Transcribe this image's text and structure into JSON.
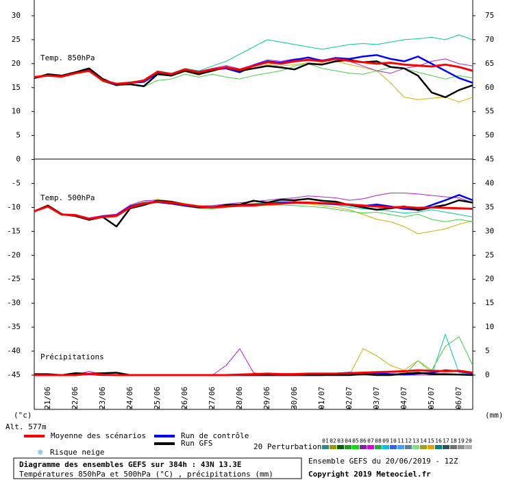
{
  "chart_data": {
    "type": "line",
    "title": "Diagramme des ensembles GEFS sur 384h : 43N 13.3E",
    "subtitle": "Températures 850hPa et 500hPa (°C) , précipitations (mm)",
    "run_info": "Ensemble GEFS du 20/06/2019 - 12Z",
    "copyright": "Copyright 2019 Meteociel.fr",
    "panel_labels": [
      "Temp. 850hPa",
      "Temp. 500hPa",
      "Précipitations"
    ],
    "unit_left": "(°c)",
    "unit_right": "(mm)",
    "altitude": "Alt. 577m",
    "snow_label": "Risque neige",
    "x": [
      0,
      12,
      24,
      36,
      48,
      60,
      72,
      84,
      96,
      108,
      120,
      132,
      144,
      156,
      168,
      180,
      192,
      204,
      216,
      228,
      240,
      252,
      264,
      276,
      288,
      300,
      312,
      324,
      336,
      348,
      360,
      372,
      384
    ],
    "xlim": [
      0,
      384
    ],
    "xticks": [
      {
        "value": 12,
        "label": "21/06"
      },
      {
        "value": 36,
        "label": "22/06"
      },
      {
        "value": 60,
        "label": "23/06"
      },
      {
        "value": 84,
        "label": "24/06"
      },
      {
        "value": 108,
        "label": "25/06"
      },
      {
        "value": 132,
        "label": "26/06"
      },
      {
        "value": 156,
        "label": "27/06"
      },
      {
        "value": 180,
        "label": "28/06"
      },
      {
        "value": 204,
        "label": "29/06"
      },
      {
        "value": 228,
        "label": "30/06"
      },
      {
        "value": 252,
        "label": "01/07"
      },
      {
        "value": 276,
        "label": "02/07"
      },
      {
        "value": 300,
        "label": "03/07"
      },
      {
        "value": 324,
        "label": "04/07"
      },
      {
        "value": 348,
        "label": "05/07"
      },
      {
        "value": 372,
        "label": "06/07"
      }
    ],
    "ylim": [
      -52.16,
      33.29
    ],
    "yticks": [
      30,
      25,
      20,
      15,
      10,
      5,
      0,
      -5,
      -10,
      -15,
      -20,
      -25,
      -30,
      -35,
      -40,
      -45
    ],
    "y2lim": [
      -7.16,
      78.29
    ],
    "y2ticks": [
      75,
      70,
      65,
      60,
      55,
      50,
      45,
      40,
      35,
      30,
      25,
      20,
      15,
      10,
      5,
      0
    ],
    "series": [
      {
        "name": "Moyenne des scénarios",
        "color": "#ff0000",
        "t850": [
          17.2,
          17.5,
          17.3,
          18,
          18.5,
          16.5,
          15.8,
          16,
          16.5,
          18.3,
          17.8,
          18.8,
          18.2,
          18.8,
          19.2,
          18.7,
          19.5,
          20.3,
          20,
          20.5,
          20.8,
          20.5,
          21,
          20.6,
          20.3,
          20,
          20.2,
          19.8,
          19.6,
          19.4,
          19.8,
          19.3,
          18.5
        ],
        "t500": [
          -10.8,
          -9.8,
          -11.5,
          -11.6,
          -12.4,
          -12,
          -11.8,
          -10,
          -9.2,
          -8.8,
          -9,
          -9.4,
          -9.8,
          -10,
          -9.8,
          -9.6,
          -9.6,
          -9.3,
          -9.2,
          -9,
          -9,
          -9.1,
          -9.2,
          -9.4,
          -9.6,
          -9.8,
          -10,
          -9.9,
          -10.1,
          -10,
          -10.1,
          -10.2,
          -10.3
        ],
        "precip": [
          0,
          0,
          0,
          0,
          0.3,
          0.1,
          0,
          0,
          0,
          0,
          0,
          0,
          0,
          0,
          0,
          0.1,
          0.2,
          0.3,
          0.2,
          0.2,
          0.3,
          0.3,
          0.3,
          0.4,
          0.5,
          0.6,
          0.7,
          0.8,
          1,
          0.9,
          0.8,
          0.9,
          0.5
        ]
      },
      {
        "name": "Run de contrôle",
        "color": "#0000ff",
        "t850": [
          17,
          17.6,
          17.4,
          18,
          18.8,
          16.5,
          15.5,
          16,
          16.2,
          18,
          17.5,
          18.6,
          18,
          18.8,
          19,
          18.2,
          19.6,
          20.5,
          20.2,
          20.8,
          21.3,
          20.6,
          21.2,
          21,
          21.5,
          21.8,
          21,
          20.5,
          21.5,
          20,
          18.5,
          17,
          16
        ],
        "t500": [
          -10.8,
          -9.7,
          -11.5,
          -11.7,
          -12.5,
          -11.9,
          -11.7,
          -9.8,
          -9.1,
          -8.9,
          -9.2,
          -9.6,
          -10,
          -9.9,
          -9.7,
          -9.5,
          -9.4,
          -9.3,
          -9,
          -8.9,
          -9,
          -9.2,
          -9.3,
          -9.5,
          -9.7,
          -9.4,
          -9.8,
          -10.3,
          -10.5,
          -9.5,
          -8.5,
          -7.4,
          -8.5
        ],
        "precip": [
          0,
          0,
          0,
          0,
          0.2,
          0,
          0,
          0,
          0,
          0,
          0,
          0,
          0,
          0,
          0,
          0,
          0,
          0,
          0,
          0,
          0,
          0,
          0.3,
          0.5,
          0.3,
          0.4,
          0.2,
          0.1,
          0.3,
          0.5,
          1,
          0.8,
          0.3
        ]
      },
      {
        "name": "Run GFS",
        "color": "#000000",
        "t850": [
          17,
          17.8,
          17.5,
          18.2,
          19,
          16.8,
          15.6,
          15.7,
          15.3,
          17.8,
          17.5,
          18.5,
          17.8,
          18.5,
          19.3,
          18.5,
          19,
          19.5,
          19.2,
          18.8,
          20,
          19.8,
          20.5,
          20.8,
          20.3,
          20.5,
          19.3,
          19,
          17.5,
          14,
          13,
          14.5,
          15.5
        ],
        "t500": [
          -10.8,
          -9.6,
          -11.4,
          -11.8,
          -12.6,
          -12,
          -14,
          -10.2,
          -9.5,
          -8.6,
          -8.8,
          -9.4,
          -10,
          -10,
          -9.5,
          -9.4,
          -8.6,
          -9,
          -8.4,
          -8.5,
          -8.2,
          -8.6,
          -8.8,
          -9.5,
          -10,
          -10.5,
          -10.2,
          -9.8,
          -10.6,
          -10,
          -9.5,
          -8.5,
          -9
        ],
        "precip": [
          0.2,
          0.2,
          0,
          0.4,
          0.3,
          0.4,
          0.5,
          0,
          0,
          0,
          0,
          0,
          0,
          0,
          0,
          0,
          0,
          0,
          0,
          0,
          0,
          0,
          0,
          0,
          0.2,
          0,
          0,
          0.3,
          0.5,
          0.2,
          0.2,
          0.1,
          0
        ]
      }
    ],
    "perturbations": [
      {
        "color": "#c8b400",
        "t850": [
          17,
          17.5,
          17.3,
          18,
          18.6,
          16.4,
          15.6,
          16,
          16.4,
          18,
          17.5,
          18.3,
          17.6,
          18.5,
          19,
          18.2,
          19,
          19.8,
          19.5,
          19.8,
          20.2,
          20,
          20.5,
          19.8,
          19.2,
          18.5,
          16,
          13,
          12.5,
          12.8,
          13,
          12,
          13
        ],
        "t500": [
          -10.8,
          -9.8,
          -11.5,
          -11.6,
          -12.3,
          -11.8,
          -11.5,
          -9.6,
          -8.8,
          -8.3,
          -8.7,
          -9.2,
          -9.6,
          -9.8,
          -9.5,
          -9.3,
          -9.2,
          -9,
          -8.9,
          -9.1,
          -9.3,
          -9.6,
          -10,
          -10.5,
          -11.5,
          -12.5,
          -13,
          -14,
          -15.5,
          -15,
          -14.5,
          -13.5,
          -12.8
        ],
        "precip": [
          0,
          0,
          0,
          0,
          0,
          0,
          0,
          0,
          0,
          0,
          0,
          0,
          0,
          0,
          0,
          0,
          0,
          0,
          0,
          0,
          0,
          0,
          0,
          0,
          5.5,
          4,
          2,
          1,
          3,
          0.5,
          0,
          0,
          0
        ]
      },
      {
        "color": "#00c8a0",
        "t850": [
          17,
          17.7,
          17.5,
          18.1,
          18.8,
          16.6,
          15.9,
          16.2,
          16.5,
          18.5,
          18,
          19,
          18.5,
          19.5,
          20.5,
          22,
          23.5,
          25,
          24.5,
          24,
          23.5,
          23,
          23.5,
          24,
          24.2,
          24,
          24.5,
          25,
          25.2,
          25.5,
          25,
          26,
          25
        ],
        "t500": [
          -10.8,
          -9.8,
          -11.5,
          -11.6,
          -12.4,
          -12,
          -11.6,
          -9.9,
          -9,
          -8.6,
          -9,
          -9.5,
          -9.9,
          -10,
          -9.6,
          -9.4,
          -9.3,
          -9,
          -8.8,
          -8.9,
          -9.1,
          -9.3,
          -9.5,
          -10,
          -10.3,
          -10.5,
          -10.8,
          -11.2,
          -11,
          -10.5,
          -11,
          -11.5,
          -12
        ],
        "precip": [
          0,
          0,
          0,
          0,
          0,
          0,
          0,
          0,
          0,
          0,
          0,
          0,
          0,
          0,
          0,
          0,
          0,
          0,
          0,
          0,
          0,
          0,
          0,
          0,
          0,
          0,
          0,
          0,
          0,
          0,
          8.5,
          0.5,
          0
        ]
      },
      {
        "color": "#40d040",
        "t850": [
          17,
          17.4,
          17.2,
          17.9,
          18.5,
          16.2,
          15.5,
          15.6,
          15.2,
          16.5,
          16.8,
          17.8,
          17.2,
          17.8,
          17.2,
          16.8,
          17.5,
          18,
          18.5,
          19.5,
          20,
          19,
          18.5,
          18,
          17.8,
          18.5,
          19.2,
          19,
          18.2,
          17.5,
          16.8,
          17.5,
          17
        ],
        "t500": [
          -10.8,
          -9.7,
          -11.4,
          -11.7,
          -12.6,
          -12.1,
          -11.9,
          -10.2,
          -9.4,
          -9,
          -9.3,
          -9.8,
          -10.2,
          -10.3,
          -10,
          -9.8,
          -9.7,
          -9.6,
          -9.5,
          -9.6,
          -9.8,
          -10,
          -10.4,
          -10.8,
          -11.2,
          -11,
          -11.5,
          -12,
          -11.4,
          -12.5,
          -13,
          -12.5,
          -13
        ],
        "precip": [
          0,
          0,
          0,
          0,
          0,
          0,
          0,
          0,
          0,
          0,
          0,
          0,
          0,
          0,
          0,
          0,
          0,
          0,
          0,
          0,
          0,
          0,
          0,
          0,
          0,
          0,
          0,
          0,
          3,
          1,
          6,
          8,
          2
        ]
      },
      {
        "color": "#b020d0",
        "t850": [
          17,
          17.6,
          17.3,
          18,
          18.7,
          16.7,
          15.8,
          16.1,
          16.3,
          18.4,
          17.9,
          18.9,
          18.4,
          19,
          19.6,
          18.9,
          19.8,
          20.8,
          20.5,
          21,
          21.2,
          20.8,
          21,
          20.5,
          19.5,
          18.5,
          18,
          19,
          19.5,
          20.5,
          21,
          20,
          19.5
        ],
        "t500": [
          -10.8,
          -9.8,
          -11.6,
          -11.5,
          -12.2,
          -11.7,
          -11.4,
          -9.5,
          -8.6,
          -8.5,
          -8.9,
          -9.3,
          -9.7,
          -9.6,
          -9.3,
          -9,
          -8.8,
          -8.5,
          -8.2,
          -8,
          -7.6,
          -7.8,
          -8,
          -8.5,
          -8.2,
          -7.5,
          -7,
          -7,
          -7.2,
          -7.5,
          -7.8,
          -8,
          -9
        ],
        "precip": [
          0,
          0,
          0,
          0,
          0.8,
          0,
          0,
          0,
          0,
          0,
          0,
          0,
          0,
          0,
          2,
          5.5,
          0.5,
          0,
          0,
          0,
          0,
          0,
          0,
          0,
          0,
          0,
          0,
          0,
          0,
          0,
          0,
          0,
          0
        ]
      }
    ],
    "members_label": "20 Perturbations",
    "members": [
      {
        "name": "01",
        "color": "#2a8c8c"
      },
      {
        "name": "02",
        "color": "#9a9a00"
      },
      {
        "name": "03",
        "color": "#006400"
      },
      {
        "name": "04",
        "color": "#1ea01e"
      },
      {
        "name": "05",
        "color": "#00e000"
      },
      {
        "name": "06",
        "color": "#8020a0"
      },
      {
        "name": "07",
        "color": "#e000e0"
      },
      {
        "name": "08",
        "color": "#20b040"
      },
      {
        "name": "09",
        "color": "#00c0e0"
      },
      {
        "name": "10",
        "color": "#3060ff"
      },
      {
        "name": "11",
        "color": "#40a0ff"
      },
      {
        "name": "12",
        "color": "#6080a0"
      },
      {
        "name": "13",
        "color": "#80e080"
      },
      {
        "name": "14",
        "color": "#a0a020"
      },
      {
        "name": "15",
        "color": "#e0a000"
      },
      {
        "name": "16",
        "color": "#008080"
      },
      {
        "name": "17",
        "color": "#305060"
      },
      {
        "name": "18",
        "color": "#707070"
      },
      {
        "name": "19",
        "color": "#909090"
      },
      {
        "name": "20",
        "color": "#b0b0b0"
      }
    ]
  }
}
